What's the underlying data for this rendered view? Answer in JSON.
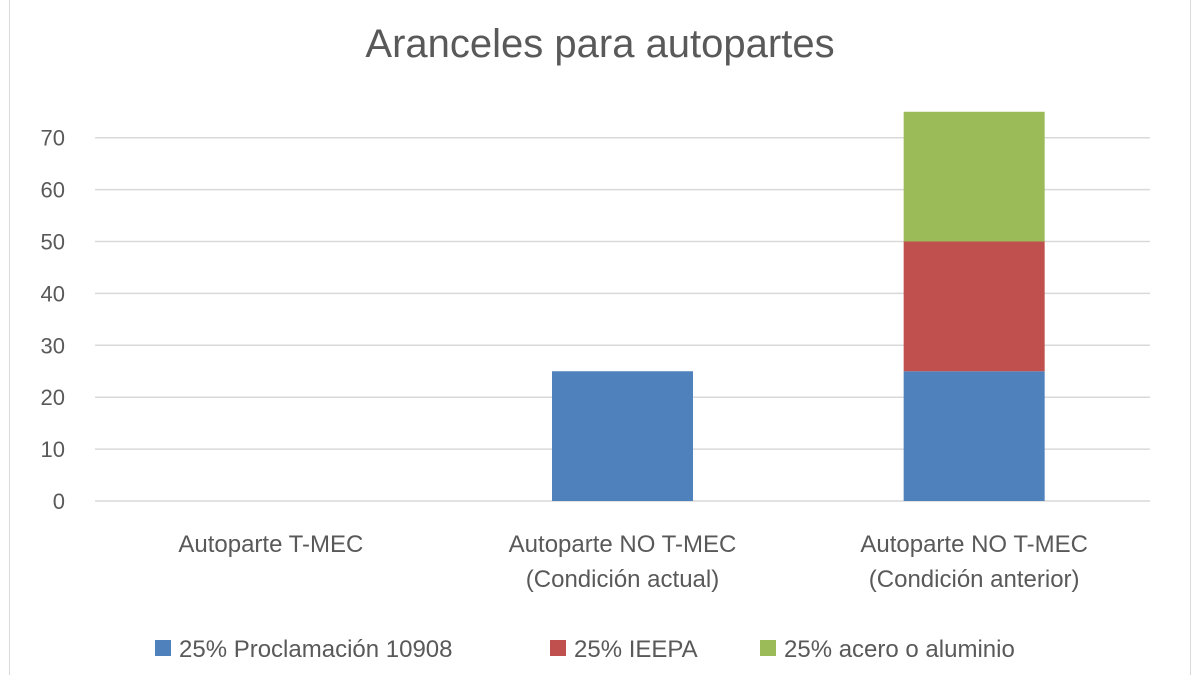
{
  "chart_data": {
    "type": "bar",
    "stacked": true,
    "title": "Aranceles para autopartes",
    "categories": [
      [
        "Autoparte T-MEC"
      ],
      [
        "Autoparte NO T-MEC",
        "(Condición actual)"
      ],
      [
        "Autoparte NO T-MEC",
        "(Condición anterior)"
      ]
    ],
    "series": [
      {
        "name": "25% Proclamación 10908",
        "color": "#4f81bd",
        "values": [
          0,
          25,
          25
        ]
      },
      {
        "name": "25% IEEPA",
        "color": "#c0504d",
        "values": [
          0,
          0,
          25
        ]
      },
      {
        "name": "25% acero o aluminio",
        "color": "#9bbb59",
        "values": [
          0,
          0,
          25
        ]
      }
    ],
    "yticks": [
      0,
      10,
      20,
      30,
      40,
      50,
      60,
      70
    ],
    "ylim": [
      0,
      75
    ],
    "grid": true,
    "legend": "bottom"
  }
}
